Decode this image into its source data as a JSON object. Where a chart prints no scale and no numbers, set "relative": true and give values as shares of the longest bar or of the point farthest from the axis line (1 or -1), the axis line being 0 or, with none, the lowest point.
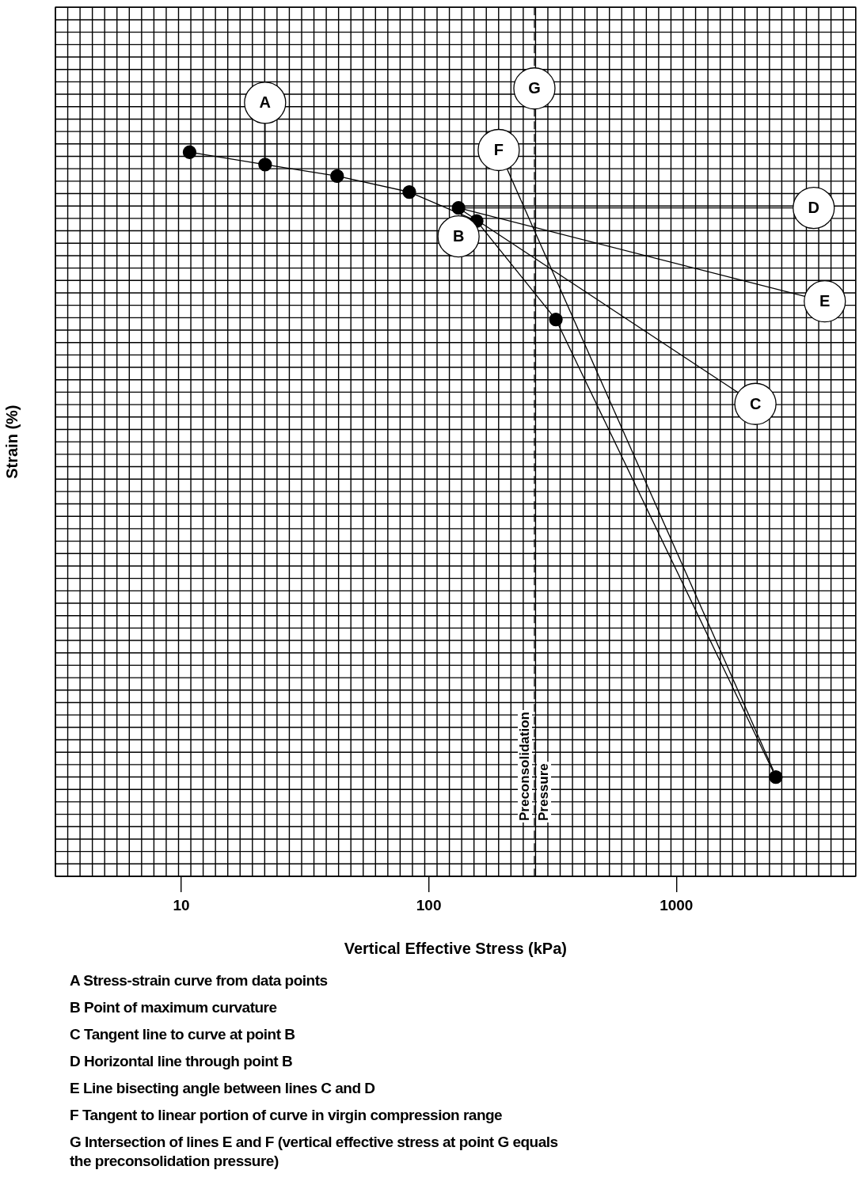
{
  "chart_data": {
    "type": "line",
    "relative": true,
    "xlabel": "Vertical Effective Stress (kPa)",
    "ylabel": "Strain (%)",
    "log": "x",
    "xlim": [
      3.1,
      5300
    ],
    "xticks": [
      10,
      100,
      1000
    ],
    "grid": true,
    "legend": false,
    "series": [
      {
        "name": "A",
        "color": "#000000",
        "marker": "circle",
        "x": [
          10.8,
          21.8,
          42.6,
          83.4,
          156,
          326,
          2523
        ],
        "values": [
          1,
          0.983,
          0.967,
          0.945,
          0.905,
          0.769,
          0.137
        ]
      },
      {
        "name": "B",
        "type": "scatter",
        "color": "#000000",
        "marker": "circle",
        "x": [
          131.8
        ],
        "values": [
          0.923
        ]
      },
      {
        "name": "C",
        "color": "#000000",
        "marker": "none",
        "x": [
          131.8,
          1778
        ],
        "values": [
          0.923,
          0.668
        ]
      },
      {
        "name": "D",
        "color": "#000000",
        "marker": "none",
        "x": [
          131.8,
          2963
        ],
        "values": [
          0.923,
          0.923
        ]
      },
      {
        "name": "E",
        "color": "#000000",
        "marker": "none",
        "x": [
          131.8,
          3304
        ],
        "values": [
          0.923,
          0.801
        ]
      },
      {
        "name": "F",
        "color": "#000000",
        "marker": "none",
        "x": [
          2468,
          207
        ],
        "values": [
          0.146,
          0.977
        ]
      }
    ],
    "ref_lines": [
      {
        "axis": "x",
        "value": 267,
        "label": "Preconsolidation Pressure",
        "line_style": "dashed",
        "color": "#000000"
      }
    ],
    "annotations": [
      {
        "text": "G",
        "x": 267,
        "y": 1.088
      },
      "A  Stress-strain curve from data points",
      "B  Point of maximum curvature",
      "C  Tangent line to curve at point B",
      "D  Horizontal line through point B",
      "E  Line bisecting angle between lines C and D",
      "F  Tangent to linear portion of curve in virgin compression range",
      "G  Intersection of lines E and F (vertical effective stress at point G equals the preconsolidation pressure)"
    ]
  }
}
